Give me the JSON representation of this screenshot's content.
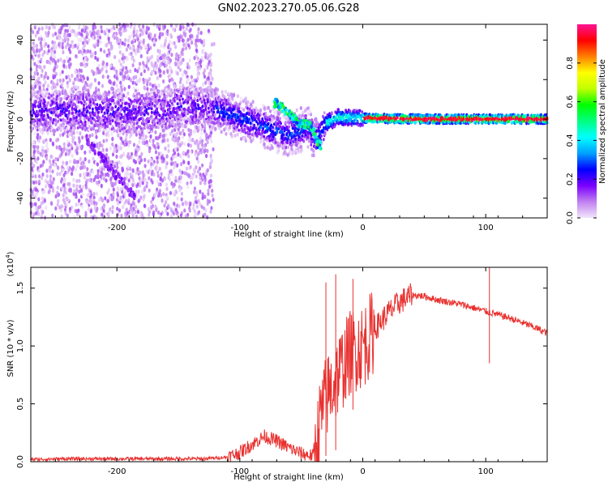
{
  "title": "GN02.2023.270.05.06.G28",
  "chart_data": [
    {
      "type": "heatmap",
      "xlabel": "Height of straight line (km)",
      "ylabel": "Frequency (Hz)",
      "xlim": [
        -270,
        150
      ],
      "ylim": [
        -50,
        48
      ],
      "xticks": [
        -200,
        -100,
        0,
        100
      ],
      "yticks": [
        -40,
        -20,
        0,
        20,
        40
      ],
      "colorbar": {
        "label": "Normalized spectral amplitude",
        "range": [
          0.0,
          1.0
        ],
        "ticks": [
          0.0,
          0.2,
          0.4,
          0.6,
          0.8
        ],
        "colors": [
          "#f2e6fa",
          "#c080f0",
          "#7a00ff",
          "#0000ff",
          "#00a0ff",
          "#00ffff",
          "#00ff80",
          "#00ff00",
          "#c0ff00",
          "#ffff00",
          "#ff8000",
          "#ff0000",
          "#ff1493"
        ]
      },
      "ridge": [
        {
          "x": -260,
          "f": 4
        },
        {
          "x": -220,
          "f": 4
        },
        {
          "x": -180,
          "f": 3
        },
        {
          "x": -150,
          "f": 6
        },
        {
          "x": -120,
          "f": 5
        },
        {
          "x": -100,
          "f": 1
        },
        {
          "x": -80,
          "f": -4
        },
        {
          "x": -60,
          "f": -8
        },
        {
          "x": -45,
          "f": -4
        },
        {
          "x": -38,
          "f": -10
        },
        {
          "x": -30,
          "f": -2
        },
        {
          "x": -20,
          "f": 1
        },
        {
          "x": 0,
          "f": 0.5
        },
        {
          "x": 50,
          "f": 0
        },
        {
          "x": 150,
          "f": 0
        }
      ],
      "branches": [
        {
          "x": -70,
          "f": 8
        },
        {
          "x": -62,
          "f": 4
        },
        {
          "x": -52,
          "f": -2
        },
        {
          "x": -42,
          "f": -3
        },
        {
          "x": -36,
          "f": -13
        }
      ]
    },
    {
      "type": "line",
      "xlabel": "Height of straight line (km)",
      "ylabel": "SNR (10 * v/v)",
      "y_multiplier": "x10^4",
      "xlim": [
        -270,
        150
      ],
      "ylim": [
        0.0,
        1.68
      ],
      "xticks": [
        -200,
        -100,
        0,
        100
      ],
      "yticks": [
        0.0,
        0.5,
        1.0,
        1.5
      ],
      "series": [
        {
          "color": "#e8312f",
          "x": [
            -270,
            -240,
            -200,
            -160,
            -130,
            -110,
            -100,
            -90,
            -80,
            -70,
            -60,
            -50,
            -40,
            -38,
            -35,
            -30,
            -25,
            -20,
            -15,
            -10,
            -5,
            0,
            10,
            20,
            30,
            40,
            50,
            60,
            70,
            80,
            90,
            100,
            110,
            120,
            130,
            140,
            150
          ],
          "values": [
            0.02,
            0.025,
            0.025,
            0.025,
            0.025,
            0.04,
            0.08,
            0.15,
            0.22,
            0.18,
            0.12,
            0.07,
            0.05,
            0.1,
            0.35,
            0.55,
            0.65,
            0.75,
            0.85,
            0.95,
            0.98,
            1.0,
            1.15,
            1.28,
            1.38,
            1.44,
            1.43,
            1.4,
            1.38,
            1.36,
            1.33,
            1.3,
            1.27,
            1.24,
            1.2,
            1.16,
            1.11
          ]
        }
      ],
      "spikes": [
        {
          "x": -30,
          "values": [
            1.55,
            0.05
          ]
        },
        {
          "x": -22,
          "values": [
            1.62,
            0.1
          ]
        },
        {
          "x": -8,
          "values": [
            1.58,
            0.45
          ]
        },
        {
          "x": 103,
          "values": [
            1.7,
            0.85
          ]
        }
      ]
    }
  ]
}
